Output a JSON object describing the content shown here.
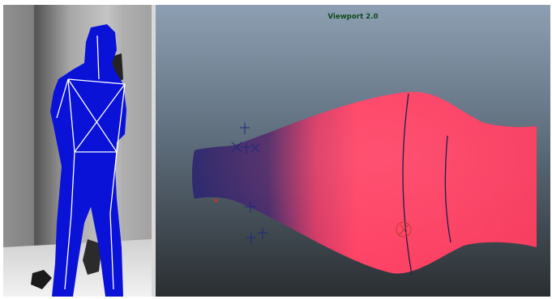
{
  "viewport": {
    "title": "Viewport 2.0"
  },
  "colors": {
    "user_silhouette": "#0a12d8",
    "skeleton": "#ffffff",
    "mesh_light": "#ff3f64",
    "mesh_dark": "#2a2a6e",
    "viewport_bg_top": "#8d9fb2",
    "viewport_bg_bottom": "#2a2e31",
    "title_text": "#0c4a1c"
  },
  "icons": {
    "locator": "crosshair",
    "pivot": "circle-with-cross"
  }
}
